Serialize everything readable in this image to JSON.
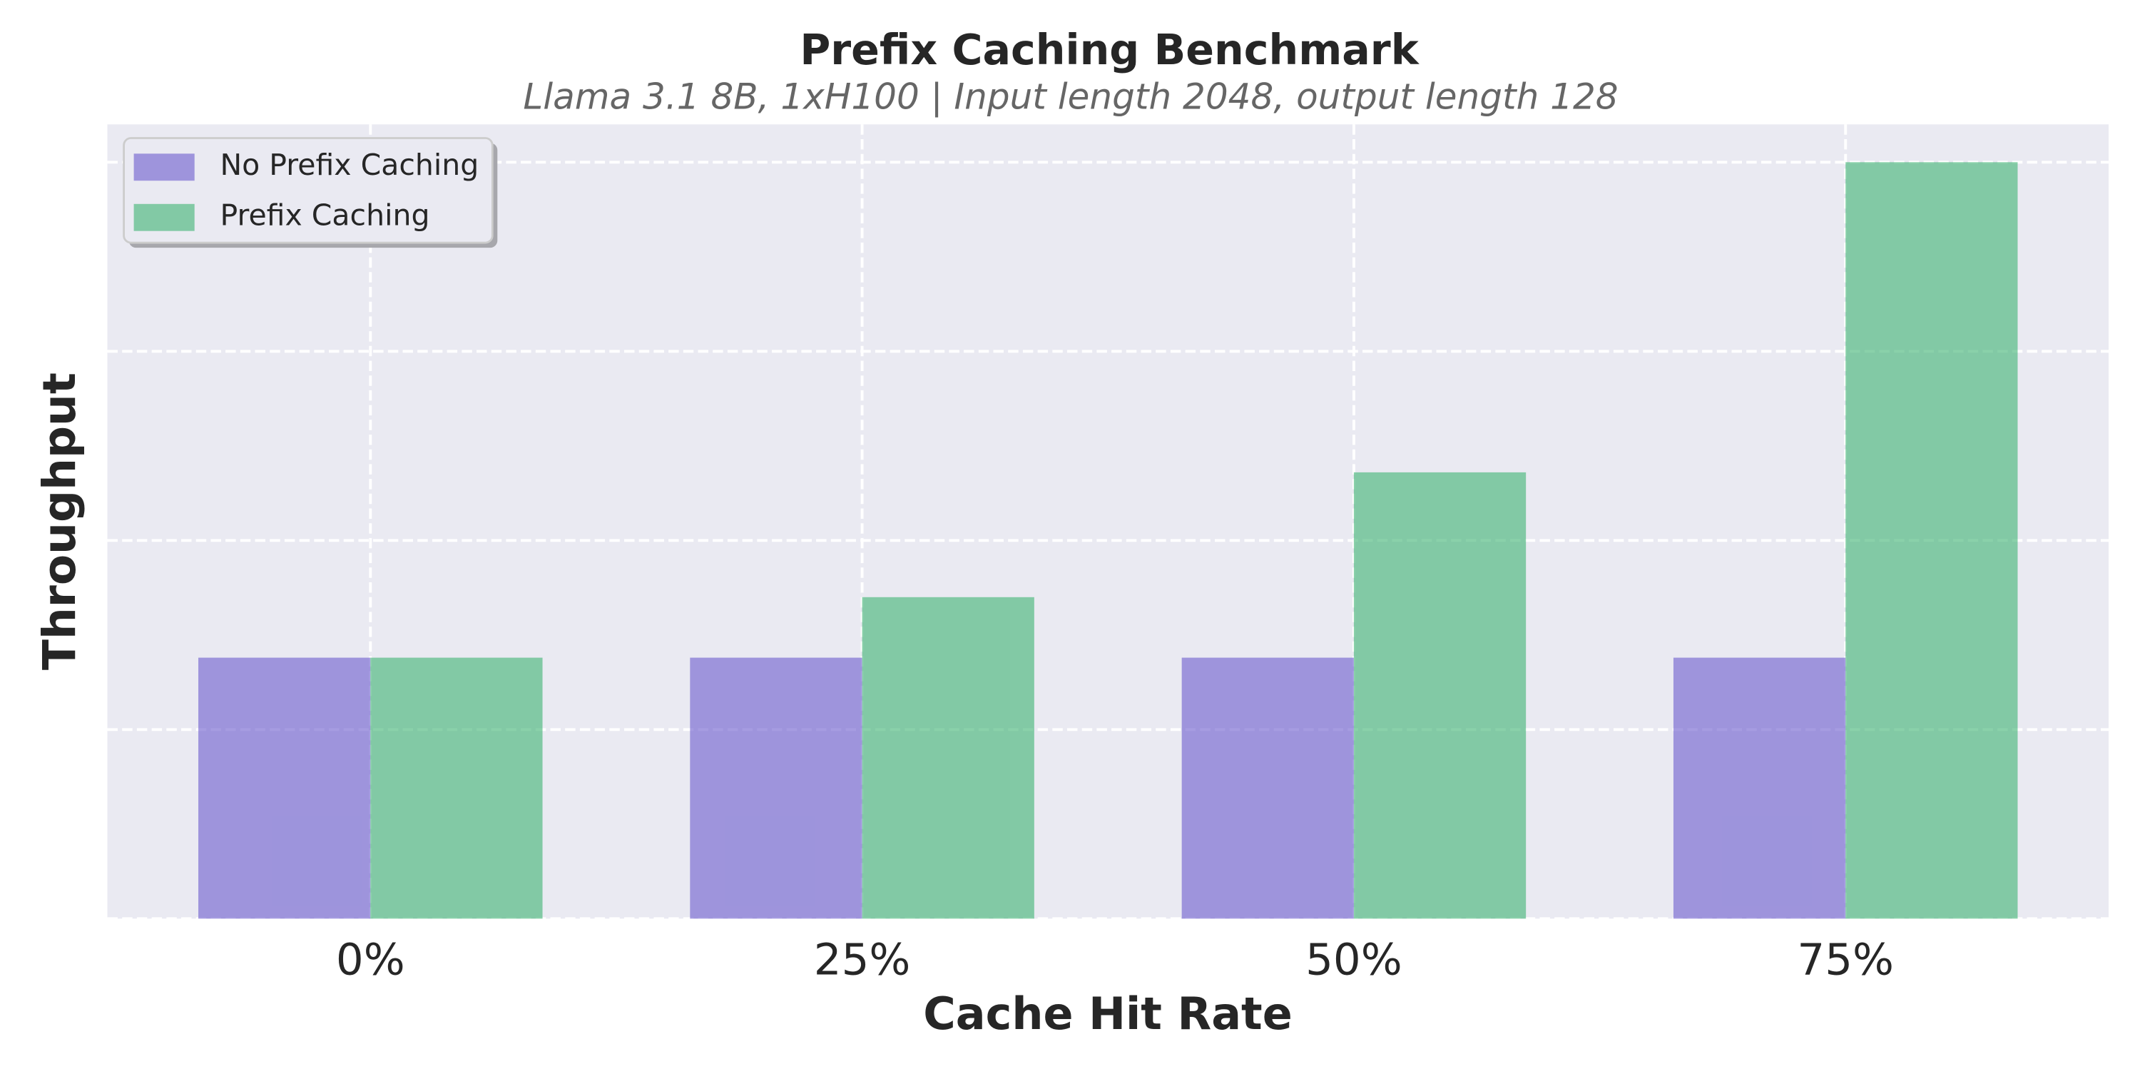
{
  "chart_data": {
    "type": "bar",
    "title": "Prefix Caching Benchmark",
    "subtitle": "Llama 3.1 8B, 1xH100 | Input length 2048, output length 128",
    "xlabel": "Cache Hit Rate",
    "ylabel": "Throughput",
    "categories": [
      "0%",
      "25%",
      "50%",
      "75%"
    ],
    "series": [
      {
        "name": "No Prefix Caching",
        "color": "#6A5ACD",
        "values": [
          13800,
          13800,
          13800,
          13800
        ]
      },
      {
        "name": "Prefix Caching",
        "color": "#3CB371",
        "values": [
          13800,
          17000,
          23600,
          40000
        ]
      }
    ],
    "bar_alpha": 0.6,
    "bar_width_ratio": 0.35,
    "ylim": [
      0,
      42000
    ],
    "ytick_interval": 10000,
    "y_tick_labels_visible": false,
    "grid": {
      "style": "dashed",
      "color": "#ffffff"
    },
    "legend_position": "upper-left"
  },
  "colors": {
    "figure_background": "#ffffff",
    "axes_background": "#eaeaf2",
    "grid_line": "#ffffff",
    "text": "#262626",
    "subtitle_text": "#666666",
    "legend_background": "#eaeaf2",
    "legend_border": "#cccccc",
    "legend_shadow": "#a7a7ac"
  }
}
